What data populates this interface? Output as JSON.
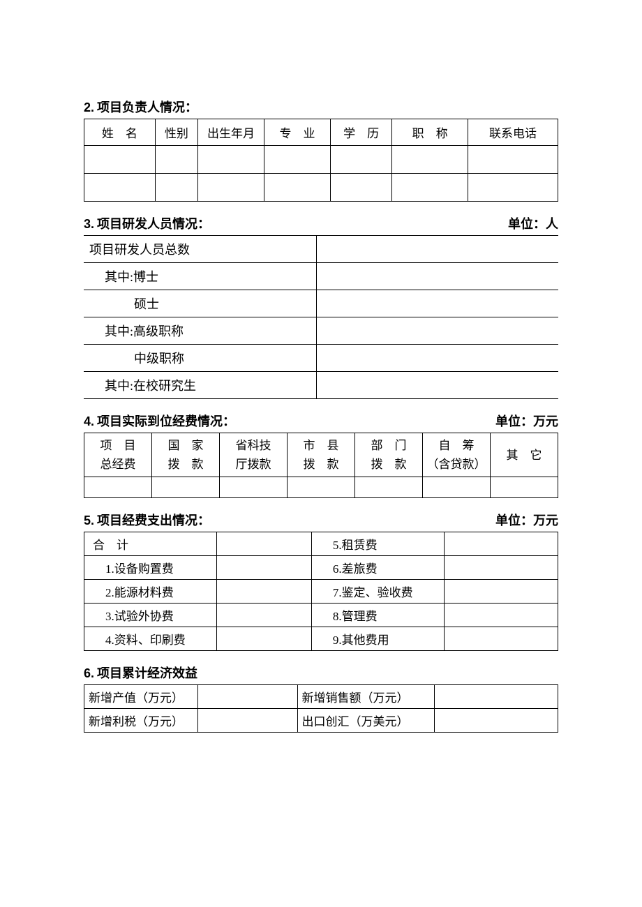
{
  "section2": {
    "title": "项目负责人情况：",
    "num": "2.",
    "headers": [
      "姓　名",
      "性别",
      "出生年月",
      "专　业",
      "学　历",
      "职　称",
      "联系电话"
    ],
    "rows": [
      [
        "",
        "",
        "",
        "",
        "",
        "",
        ""
      ],
      [
        "",
        "",
        "",
        "",
        "",
        "",
        ""
      ]
    ],
    "col_widths": [
      "15%",
      "9%",
      "14%",
      "14%",
      "13%",
      "16%",
      "19%"
    ]
  },
  "section3": {
    "title": "项目研发人员情况：",
    "num": "3.",
    "unit": "单位：人",
    "rows": [
      {
        "label": "项目研发人员总数",
        "indent": 0,
        "value": ""
      },
      {
        "label": "其中:博士",
        "indent": 1,
        "value": ""
      },
      {
        "label": "硕士",
        "indent": 2,
        "value": ""
      },
      {
        "label": "其中:高级职称",
        "indent": 1,
        "value": ""
      },
      {
        "label": "中级职称",
        "indent": 2,
        "value": ""
      },
      {
        "label": "其中:在校研究生",
        "indent": 1,
        "value": ""
      }
    ]
  },
  "section4": {
    "title": "项目实际到位经费情况：",
    "num": "4.",
    "unit": "单位：万元",
    "headers": [
      "项　目\n总经费",
      "国　家\n拨　款",
      "省科技\n厅拨款",
      "市　县\n拨　款",
      "部　门\n拨　款",
      "自　筹\n（含贷款）",
      "其　它"
    ],
    "rows": [
      [
        "",
        "",
        "",
        "",
        "",
        "",
        ""
      ]
    ]
  },
  "section5": {
    "title": "项目经费支出情况：",
    "num": "5.",
    "unit": "单位：万元",
    "rows": [
      {
        "l_label": "合　计",
        "l_indent": 0,
        "l_value": "",
        "r_label": "5.租赁费",
        "r_value": ""
      },
      {
        "l_label": "1.设备购置费",
        "l_indent": 1,
        "l_value": "",
        "r_label": "6.差旅费",
        "r_value": ""
      },
      {
        "l_label": "2.能源材料费",
        "l_indent": 1,
        "l_value": "",
        "r_label": "7.鉴定、验收费",
        "r_value": ""
      },
      {
        "l_label": "3.试验外协费",
        "l_indent": 1,
        "l_value": "",
        "r_label": "8.管理费",
        "r_value": ""
      },
      {
        "l_label": "4.资料、印刷费",
        "l_indent": 1,
        "l_value": "",
        "r_label": "9.其他费用",
        "r_value": ""
      }
    ]
  },
  "section6": {
    "title": "项目累计经济效益",
    "num": "6.",
    "rows": [
      {
        "l_label": "新增产值（万元）",
        "l_value": "",
        "r_label": "新增销售额（万元）",
        "r_value": ""
      },
      {
        "l_label": "新增利税（万元）",
        "l_value": "",
        "r_label": "出口创汇（万美元）",
        "r_value": ""
      }
    ]
  }
}
